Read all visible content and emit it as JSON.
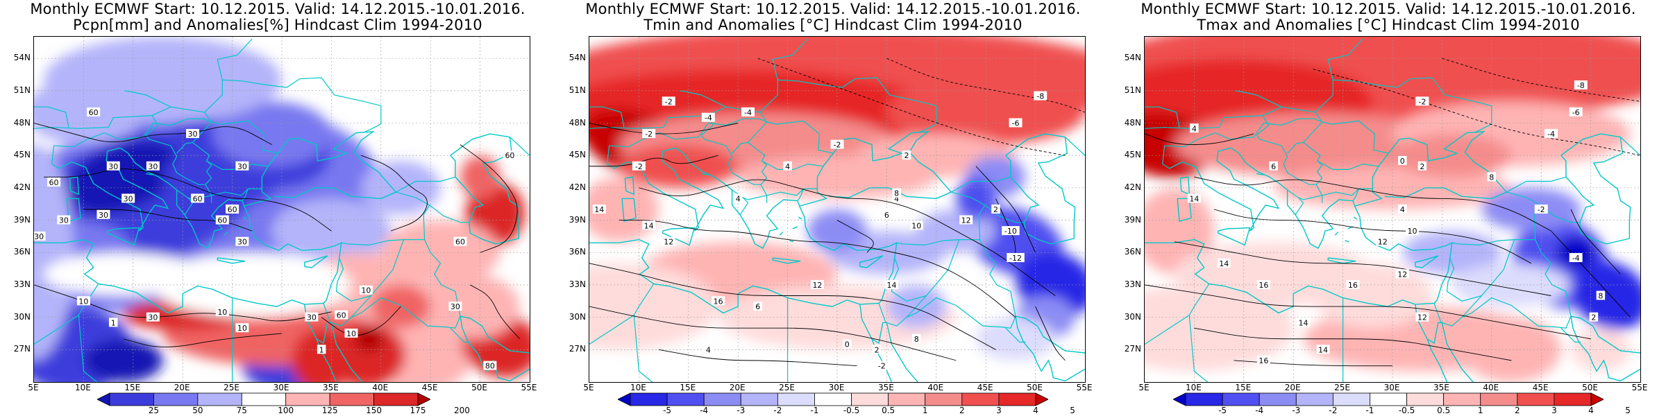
{
  "panels": [
    {
      "title_line1": "Monthly ECMWF Start: 10.12.2015. Valid: 14.12.2015.-10.01.2016.",
      "title_line2": "Pcpn[mm] and Anomalies[%] Hindcast Clim 1994-2010",
      "colorbar_labels": [
        "25",
        "50",
        "75",
        "100",
        "125",
        "150",
        "175",
        "200"
      ],
      "contour_labels": [
        "60",
        "30",
        "30",
        "30",
        "30",
        "60",
        "30",
        "60",
        "60",
        "30",
        "30",
        "30",
        "60",
        "30",
        "10",
        "1",
        "10",
        "30",
        "10",
        "30",
        "60",
        "10",
        "30",
        "10",
        "1",
        "60",
        "60",
        "80"
      ]
    },
    {
      "title_line1": "Monthly ECMWF Start: 10.12.2015. Valid: 14.12.2015.-10.01.2016.",
      "title_line2": "Tmin and Anomalies [°C] Hindcast Clim 1994-2010",
      "colorbar_labels": [
        "-5",
        "-4",
        "-3",
        "-2",
        "-1",
        "-0.5",
        "0.5",
        "1",
        "2",
        "3",
        "4",
        "5"
      ],
      "contour_labels": [
        "-8",
        "-6",
        "-2",
        "-4",
        "-2",
        "-4",
        "-2",
        "-2",
        "2",
        "4",
        "2",
        "4",
        "6",
        "14",
        "12",
        "14",
        "4",
        "8",
        "10",
        "12",
        "14",
        "-10",
        "-12",
        "12",
        "16",
        "6",
        "8",
        "4",
        "0",
        "2",
        "-2"
      ]
    },
    {
      "title_line1": "Monthly ECMWF Start: 10.12.2015. Valid: 14.12.2015.-10.01.2016.",
      "title_line2": "Tmax and Anomalies [°C] Hindcast Clim 1994-2010",
      "colorbar_labels": [
        "-5",
        "-4",
        "-3",
        "-2",
        "-1",
        "-0.5",
        "0.5",
        "1",
        "2",
        "3",
        "4",
        "5"
      ],
      "contour_labels": [
        "-8",
        "-6",
        "-4",
        "-2",
        "4",
        "6",
        "0",
        "2",
        "8",
        "4",
        "14",
        "12",
        "10",
        "12",
        "14",
        "16",
        "16",
        "14",
        "12",
        "14",
        "16",
        "-2",
        "-4",
        "2",
        "8"
      ]
    }
  ],
  "axes": {
    "lat_labels": [
      "54N",
      "51N",
      "48N",
      "45N",
      "42N",
      "39N",
      "36N",
      "33N",
      "30N",
      "27N"
    ],
    "lon_labels": [
      "5E",
      "10E",
      "15E",
      "20E",
      "25E",
      "30E",
      "35E",
      "40E",
      "45E",
      "50E",
      "55E"
    ]
  },
  "colors": {
    "border": "#00c8c8",
    "contour": "#000000",
    "dry_scale": [
      "#1414b4",
      "#3c3cdc",
      "#7878f0",
      "#b4b4fa",
      "#ffffff",
      "#ffb4b4",
      "#f06464",
      "#dc2828",
      "#b40000"
    ],
    "anom_scale": [
      "#0000c8",
      "#2828e6",
      "#5050f0",
      "#8c8cf5",
      "#b4b4fa",
      "#dcdcfc",
      "#ffffff",
      "#ffdcdc",
      "#ffb4b4",
      "#f58c8c",
      "#f05050",
      "#e62828",
      "#c80000"
    ]
  }
}
